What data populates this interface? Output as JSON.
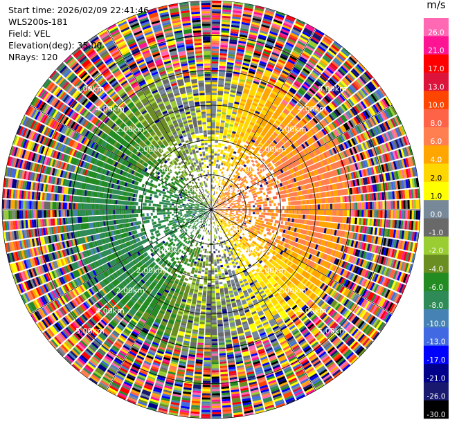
{
  "info": {
    "start_time": "Start time: 2026/02/09 22:41:46",
    "instrument": "WLS200s-181",
    "field": "Field: VEL",
    "elevation": "Elevation(deg): 35.00",
    "nrays": "NRays: 120"
  },
  "colorbar": {
    "unit": "m/s",
    "bins": [
      {
        "label": "26.0",
        "color": "#ff69b4"
      },
      {
        "label": "21.0",
        "color": "#ff1493"
      },
      {
        "label": "17.0",
        "color": "#ff0000"
      },
      {
        "label": "13.0",
        "color": "#dc143c"
      },
      {
        "label": "10.0",
        "color": "#ff4500"
      },
      {
        "label": "8.0",
        "color": "#ff6347"
      },
      {
        "label": "6.0",
        "color": "#ff7f50"
      },
      {
        "label": "4.0",
        "color": "#ffa500"
      },
      {
        "label": "2.0",
        "color": "#ffd700"
      },
      {
        "label": "1.0",
        "color": "#ffff00"
      },
      {
        "label": "0.0",
        "color": "#778899"
      },
      {
        "label": "-1.0",
        "color": "#696969"
      },
      {
        "label": "-2.0",
        "color": "#9acd32"
      },
      {
        "label": "-4.0",
        "color": "#6b8e23"
      },
      {
        "label": "-6.0",
        "color": "#228b22"
      },
      {
        "label": "-8.0",
        "color": "#2e8b57"
      },
      {
        "label": "-10.0",
        "color": "#4682b4"
      },
      {
        "label": "-13.0",
        "color": "#4169e1"
      },
      {
        "label": "-17.0",
        "color": "#0000ff"
      },
      {
        "label": "-21.0",
        "color": "#00008b"
      },
      {
        "label": "-26.0",
        "color": "#191970"
      },
      {
        "label": "-30.0",
        "color": "#000000"
      }
    ]
  },
  "chart_data": {
    "type": "heatmap",
    "projection": "polar PPI",
    "field": "VEL",
    "nrays": 120,
    "max_range_km": 6.0,
    "range_ring_labels": [
      "2.00km",
      "4.00km",
      "5.00km"
    ],
    "grid": "on",
    "pattern": "Positive velocities (yellow/orange) on the east side, negative velocities (green/blue) on the west side within ~4 km; noisy random colors beyond ~4.5 km."
  }
}
